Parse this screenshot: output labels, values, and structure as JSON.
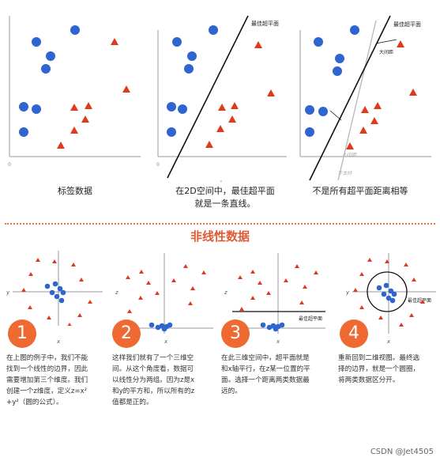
{
  "top_panels": [
    {
      "caption_lines": [
        "标签数据"
      ],
      "origin_label": "0",
      "x_label": "x"
    },
    {
      "caption_lines": [
        "在2D空间中，最佳超平面",
        "就是一条直线。"
      ],
      "origin_label": "0",
      "x_label": "x",
      "hyperplane_label": "最佳超平面"
    },
    {
      "caption_lines": [
        "不是所有超平面距离相等"
      ],
      "origin_label": "0",
      "x_label": "x",
      "hyperplane_label": "最佳超平面",
      "big_gap_label": "大间距",
      "small_gap_label": "小间距",
      "not_good_label": "不太好"
    }
  ],
  "section_title": "非线性数据",
  "bottom_panels": [
    {
      "number": "1",
      "x_label": "x",
      "y_label": "y",
      "lines": [
        "在上图的例子中，我们不能",
        "找到一个线性的边界，因此",
        "需要增加第三个维度。我们",
        "创建一个z维度，定义z=x²",
        "+y²（圆的公式）。"
      ]
    },
    {
      "number": "2",
      "x_label": "x",
      "y_label": "z",
      "lines": [
        "这样我们就有了一个三维空",
        "间。从这个角度看，数据可",
        "以线性分为两组。因为z是x",
        "和y的平方和，所以所有的z",
        "值都是正的。"
      ]
    },
    {
      "number": "3",
      "x_label": "x",
      "y_label": "z",
      "hyperplane_label": "最佳超平面",
      "lines": [
        "在此三维空间中，超平面就是",
        "和x轴平行，在z某一位置的平",
        "面。选择一个距离两类数据最",
        "远的。"
      ]
    },
    {
      "number": "4",
      "x_label": "x",
      "y_label": "y",
      "hyperplane_label": "最佳超平面",
      "lines": [
        "重新回到二维视图。最终选",
        "择的边界，就是一个圆圈，",
        "将两类数据区分开。"
      ]
    }
  ],
  "colors": {
    "blue": "#2e65d0",
    "red": "#e03a1e",
    "accent": "#ee6a32",
    "axis": "#999999"
  },
  "watermark": "CSDN @Jet4505"
}
